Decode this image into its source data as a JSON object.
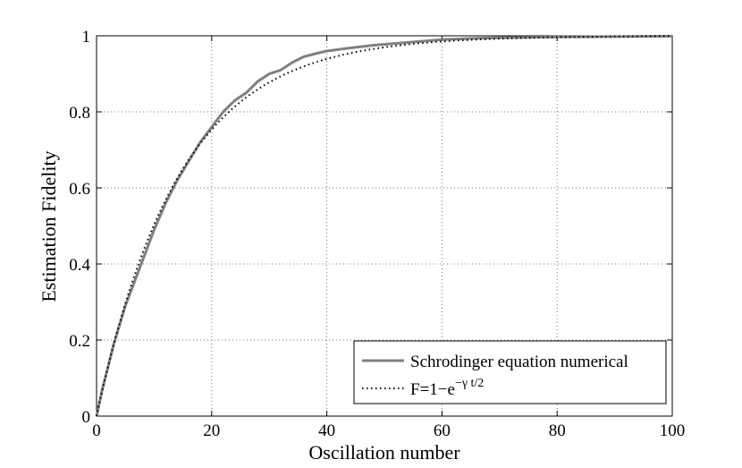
{
  "chart_data": {
    "type": "line",
    "title": "",
    "xlabel": "Oscillation number",
    "ylabel": "Estimation Fidelity",
    "xlim": [
      0,
      100
    ],
    "ylim": [
      0,
      1
    ],
    "xticks": [
      "0",
      "20",
      "40",
      "60",
      "80",
      "100"
    ],
    "yticks": [
      "0",
      "0.2",
      "0.4",
      "0.6",
      "0.8",
      "1"
    ],
    "grid": true,
    "legend_position": "bottom-right",
    "series": [
      {
        "name": "Schrodinger equation numerical",
        "style": "solid",
        "color": "#808080",
        "x": [
          0,
          1,
          2,
          3,
          4,
          5,
          6,
          8,
          10,
          12,
          14,
          16,
          18,
          20,
          22,
          24,
          26,
          28,
          30,
          32,
          34,
          36,
          38,
          40,
          44,
          48,
          52,
          56,
          60,
          65,
          70,
          75,
          80,
          90,
          100
        ],
        "y": [
          0.0,
          0.07,
          0.13,
          0.19,
          0.24,
          0.29,
          0.33,
          0.41,
          0.49,
          0.56,
          0.62,
          0.67,
          0.72,
          0.76,
          0.8,
          0.83,
          0.85,
          0.88,
          0.9,
          0.91,
          0.93,
          0.945,
          0.953,
          0.96,
          0.968,
          0.975,
          0.98,
          0.985,
          0.99,
          0.993,
          0.995,
          0.996,
          0.997,
          0.998,
          0.999
        ]
      },
      {
        "name": "F=1−e",
        "name_superscript": "−γ t/2",
        "style": "dotted",
        "color": "#000000",
        "gamma": 0.14
      }
    ]
  }
}
